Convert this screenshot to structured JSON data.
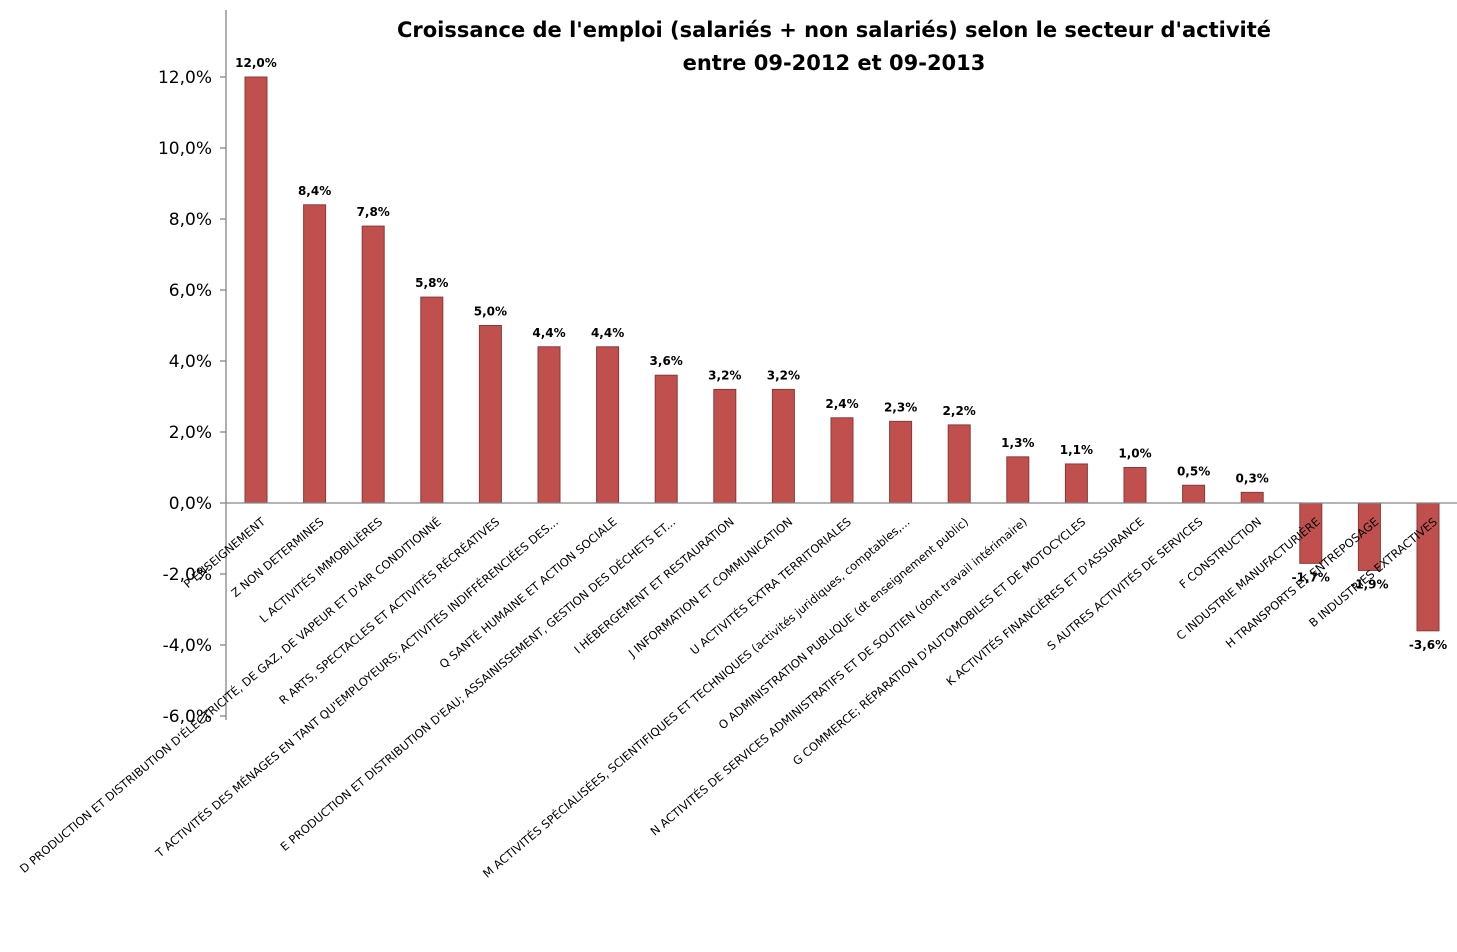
{
  "chart_data": {
    "type": "bar",
    "title": "Croissance de l'emploi (salariés + non salariés) selon le secteur d'activité",
    "subtitle": "entre 09-2012 et 09-2013",
    "ylim": [
      -0.06,
      0.12
    ],
    "yticks": [
      "12,0%",
      "10,0%",
      "8,0%",
      "6,0%",
      "4,0%",
      "2,0%",
      "0,0%",
      "-2,0%",
      "-4,0%",
      "-6,0%"
    ],
    "bar_color": "#c0504d",
    "legend": "none",
    "grid": false,
    "categories": [
      "P ENSEIGNEMENT",
      "Z  NON DETERMINES",
      "L ACTIVITÉS IMMOBILIÈRES",
      "D PRODUCTION ET DISTRIBUTION D'ÉLECTRICITÉ, DE GAZ, DE VAPEUR ET D'AIR CONDITIONNÉ",
      "R ARTS, SPECTACLES ET ACTIVITÉS RÉCRÉATIVES",
      "T ACTIVITÉS DES MÉNAGES EN TANT QU'EMPLOYEURS; ACTIVITÉS INDIFFÉRENCIÉES DES...",
      "Q SANTÉ HUMAINE ET ACTION SOCIALE",
      "E PRODUCTION ET DISTRIBUTION D'EAU; ASSAINISSEMENT, GESTION DES DÉCHETS ET...",
      "I HÉBERGEMENT ET RESTAURATION",
      "J INFORMATION ET COMMUNICATION",
      "U ACTIVITÉS EXTRA TERRITORIALES",
      "M ACTIVITÉS SPÉCIALISÉES, SCIENTIFIQUES ET TECHNIQUES (activités juridiques, comptables,...",
      "O ADMINISTRATION PUBLIQUE (dt enseignement public)",
      "N ACTIVITÉS DE SERVICES ADMINISTRATIFS ET DE SOUTIEN (dont travail intérimaire)",
      "G COMMERCE; RÉPARATION D'AUTOMOBILES ET DE MOTOCYCLES",
      "K ACTIVITÉS FINANCIÈRES ET D'ASSURANCE",
      "S AUTRES ACTIVITÉS DE SERVICES",
      "F CONSTRUCTION",
      "C INDUSTRIE MANUFACTURIÈRE",
      "H TRANSPORTS ET ENTREPOSAGE",
      "B INDUSTRIES EXTRACTIVES"
    ],
    "values": [
      0.12,
      0.084,
      0.078,
      0.058,
      0.05,
      0.044,
      0.044,
      0.036,
      0.032,
      0.032,
      0.024,
      0.023,
      0.022,
      0.013,
      0.011,
      0.01,
      0.005,
      0.003,
      -0.017,
      -0.019,
      -0.036
    ],
    "value_labels": [
      "12,0%",
      "8,4%",
      "7,8%",
      "5,8%",
      "5,0%",
      "4,4%",
      "4,4%",
      "3,6%",
      "3,2%",
      "3,2%",
      "2,4%",
      "2,3%",
      "2,2%",
      "1,3%",
      "1,1%",
      "1,0%",
      "0,5%",
      "0,3%",
      "-1,7%",
      "-1,9%",
      "-3,6%"
    ]
  }
}
